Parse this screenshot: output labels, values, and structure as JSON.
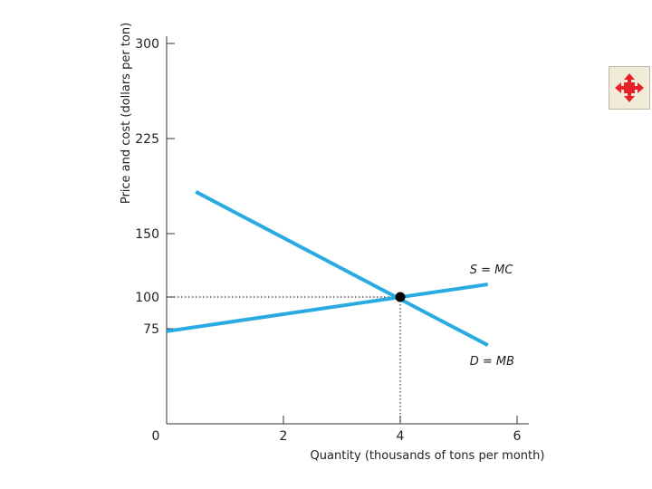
{
  "chart_data": {
    "type": "line",
    "xlabel": "Quantity (thousands of tons per month)",
    "ylabel": "Price and cost (dollars per ton)",
    "xlim": [
      0,
      6.2
    ],
    "ylim": [
      0,
      300
    ],
    "x_ticks": [
      "0",
      "2",
      "4",
      "6"
    ],
    "x_tick_values": [
      0,
      2,
      4,
      6
    ],
    "y_ticks": [
      "75",
      "100",
      "150",
      "225",
      "300"
    ],
    "y_tick_values": [
      75,
      100,
      150,
      225,
      300
    ],
    "series": [
      {
        "name": "S = MC",
        "color": "#29abe2",
        "points": [
          [
            0,
            73
          ],
          [
            5.5,
            110
          ]
        ]
      },
      {
        "name": "D = MB",
        "color": "#29abe2",
        "points": [
          [
            0.5,
            183
          ],
          [
            5.5,
            62
          ]
        ]
      }
    ],
    "equilibrium": {
      "x": 4,
      "y": 100
    },
    "grid": false
  },
  "nav": {
    "icon": "move-arrows-icon",
    "color": "#e8202a"
  }
}
